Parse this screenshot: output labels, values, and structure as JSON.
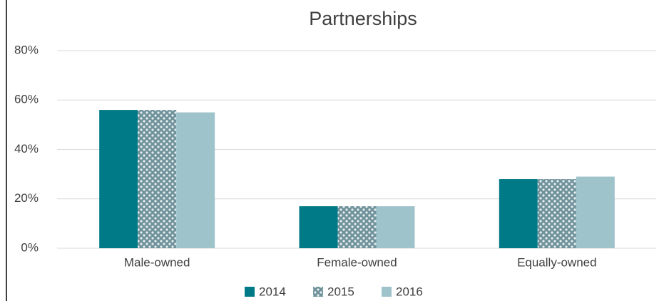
{
  "chart_data": {
    "type": "bar",
    "title": "Partnerships",
    "categories": [
      "Male-owned",
      "Female-owned",
      "Equally-owned"
    ],
    "series": [
      {
        "name": "2014",
        "color": "#007a87",
        "values": [
          56,
          17,
          28
        ]
      },
      {
        "name": "2015",
        "color": "#6f929b",
        "pattern": "dots",
        "values": [
          56,
          17,
          28
        ]
      },
      {
        "name": "2016",
        "color": "#9fc3cb",
        "values": [
          55,
          17,
          29
        ]
      }
    ],
    "ylim": [
      0,
      80
    ],
    "yticks": [
      {
        "value": 0,
        "label": "0%"
      },
      {
        "value": 20,
        "label": "20%"
      },
      {
        "value": 40,
        "label": "40%"
      },
      {
        "value": 60,
        "label": "60%"
      },
      {
        "value": 80,
        "label": "80%"
      }
    ],
    "grid": true,
    "legend": "bottom"
  }
}
